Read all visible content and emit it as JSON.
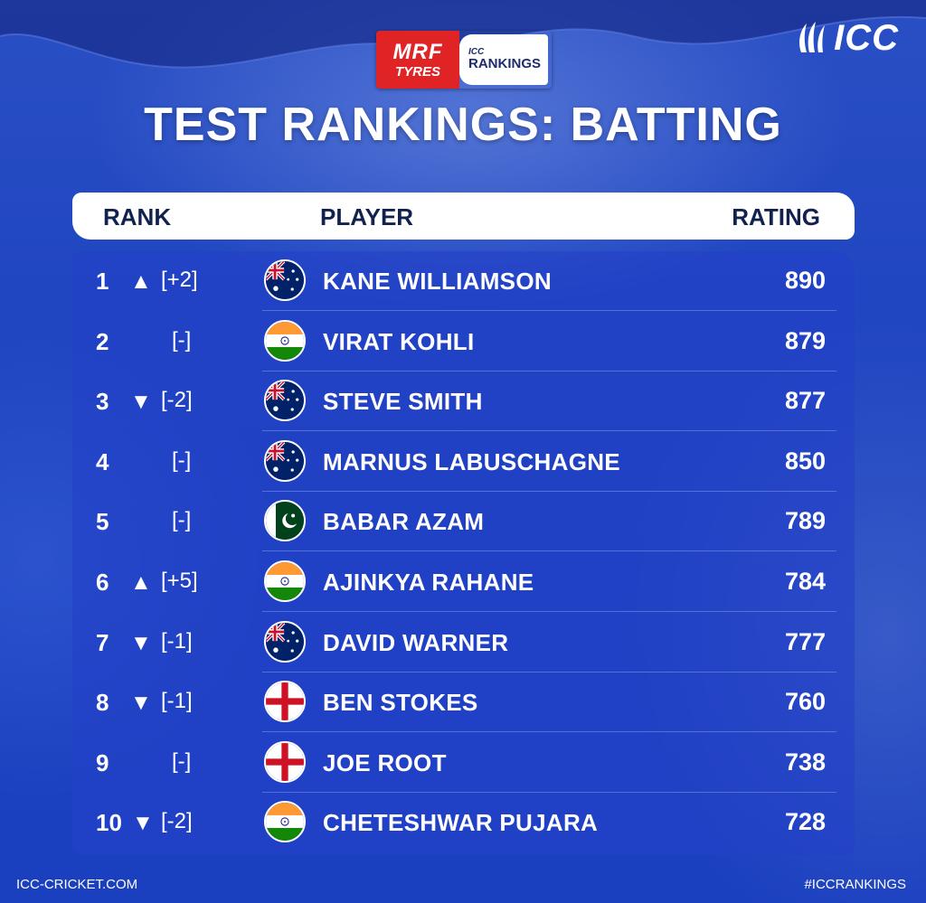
{
  "brand": {
    "icc_text": "ICC",
    "sponsor_line1": "MRF",
    "sponsor_line2": "TYRES",
    "rankings_line1": "ICC",
    "rankings_line2": "RANKINGS"
  },
  "title": "TEST RANKINGS: BATTING",
  "headers": {
    "rank": "RANK",
    "player": "PLAYER",
    "rating": "RATING"
  },
  "rows": [
    {
      "rank": "1",
      "arrow": "▲",
      "move": "[+2]",
      "country": "australia-flag",
      "player": "KANE WILLIAMSON",
      "rating": "890"
    },
    {
      "rank": "2",
      "arrow": "",
      "move": "[-]",
      "country": "india-flag",
      "player": "VIRAT KOHLI",
      "rating": "879"
    },
    {
      "rank": "3",
      "arrow": "▼",
      "move": "[-2]",
      "country": "australia-flag",
      "player": "STEVE SMITH",
      "rating": "877"
    },
    {
      "rank": "4",
      "arrow": "",
      "move": "[-]",
      "country": "australia-flag",
      "player": "MARNUS LABUSCHAGNE",
      "rating": "850"
    },
    {
      "rank": "5",
      "arrow": "",
      "move": "[-]",
      "country": "pakistan-flag",
      "player": "BABAR AZAM",
      "rating": "789"
    },
    {
      "rank": "6",
      "arrow": "▲",
      "move": "[+5]",
      "country": "india-flag",
      "player": "AJINKYA RAHANE",
      "rating": "784"
    },
    {
      "rank": "7",
      "arrow": "▼",
      "move": "[-1]",
      "country": "australia-flag",
      "player": "DAVID WARNER",
      "rating": "777"
    },
    {
      "rank": "8",
      "arrow": "▼",
      "move": "[-1]",
      "country": "england-flag",
      "player": "BEN STOKES",
      "rating": "760"
    },
    {
      "rank": "9",
      "arrow": "",
      "move": "[-]",
      "country": "england-flag",
      "player": "JOE ROOT",
      "rating": "738"
    },
    {
      "rank": "10",
      "arrow": "▼",
      "move": "[-2]",
      "country": "india-flag",
      "player": "CHETESHWAR PUJARA",
      "rating": "728"
    }
  ],
  "footer": {
    "left": "ICC-CRICKET.COM",
    "right": "#ICCRANKINGS"
  },
  "colors": {
    "background": "#1d3fb8",
    "panel": "#2440c8",
    "header_bar": "#ffffff",
    "sponsor_red": "#e02426"
  }
}
